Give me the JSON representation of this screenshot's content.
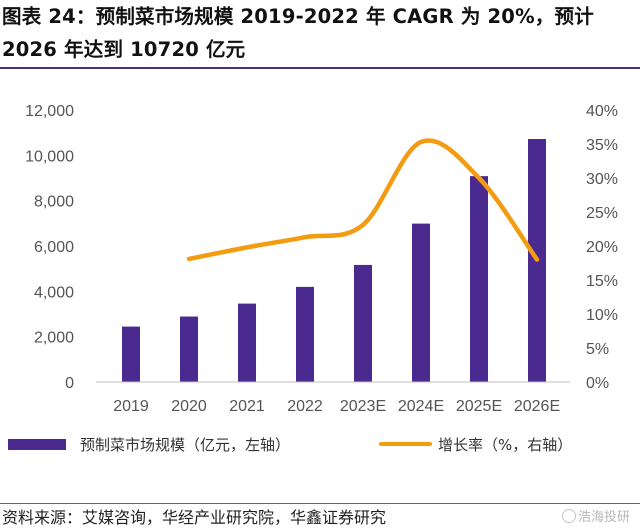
{
  "title": "图表 24：预制菜市场规模 2019-2022 年 CAGR 为 20%，预计 2026 年达到 10720 亿元",
  "source": "资料来源：艾媒咨询，华经产业研究院，华鑫证券研究",
  "watermark": "浩海投研",
  "colors": {
    "bar": "#4b2a8f",
    "line": "#f39c12",
    "accent": "#4a2f86"
  },
  "chart_data": {
    "type": "bar",
    "categories": [
      "2019",
      "2020",
      "2021",
      "2022",
      "2023E",
      "2024E",
      "2025E",
      "2026E"
    ],
    "series": [
      {
        "name": "预制菜市场规模（亿元，左轴）",
        "type": "bar",
        "axis": "left",
        "values": [
          2445,
          2888,
          3459,
          4196,
          5165,
          6988,
          9082,
          10720
        ]
      },
      {
        "name": "增长率（%，右轴）",
        "type": "line",
        "axis": "right",
        "smooth": true,
        "values": [
          null,
          18.1,
          19.8,
          21.3,
          23.1,
          35.3,
          30.0,
          18.0
        ]
      }
    ],
    "y_left": {
      "ylim": [
        0,
        12000
      ],
      "ticks": [
        0,
        2000,
        4000,
        6000,
        8000,
        10000,
        12000
      ],
      "tick_labels": [
        "0",
        "2,000",
        "4,000",
        "6,000",
        "8,000",
        "10,000",
        "12,000"
      ]
    },
    "y_right": {
      "ylim": [
        0,
        40
      ],
      "ticks": [
        0,
        5,
        10,
        15,
        20,
        25,
        30,
        35,
        40
      ],
      "tick_labels": [
        "0%",
        "5%",
        "10%",
        "15%",
        "20%",
        "25%",
        "30%",
        "35%",
        "40%"
      ]
    },
    "grid": false,
    "legend_position": "bottom"
  }
}
